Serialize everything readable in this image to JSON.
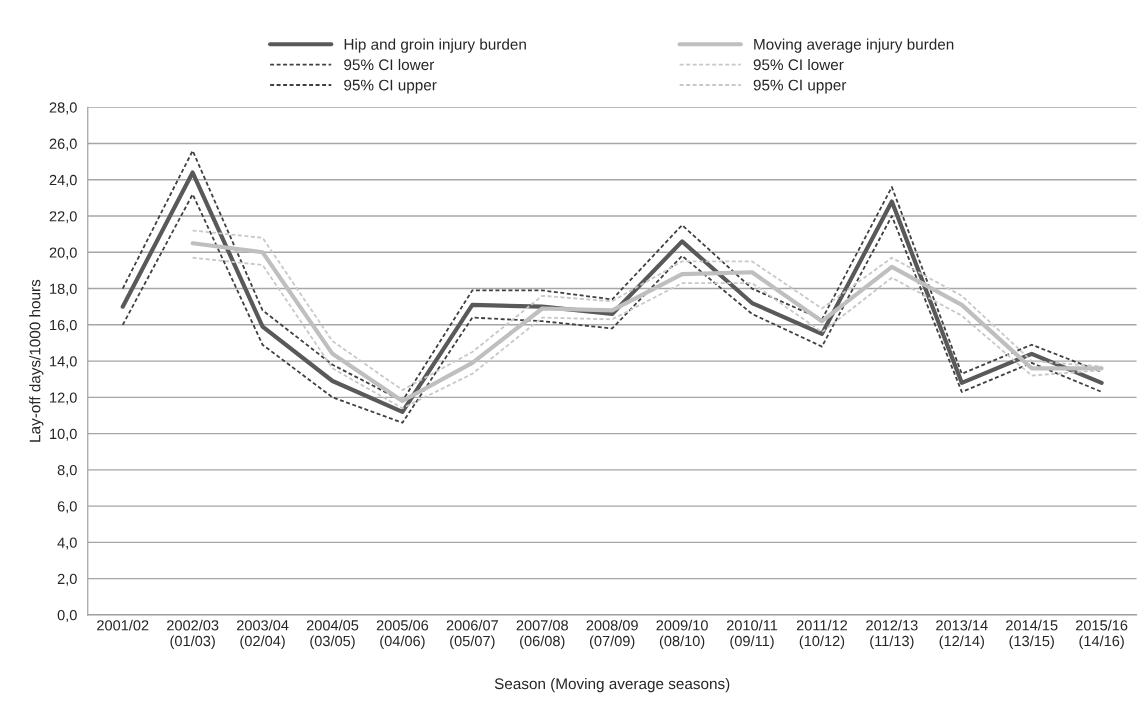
{
  "chart_data": {
    "type": "line",
    "ylabel": "Lay-off days/1000 hours",
    "xlabel": "Season (Moving average seasons)",
    "categories": [
      "2001/02",
      "2002/03\n(01/03)",
      "2003/04\n(02/04)",
      "2004/05\n(03/05)",
      "2005/06\n(04/06)",
      "2006/07\n(05/07)",
      "2007/08\n(06/08)",
      "2008/09\n(07/09)",
      "2009/10\n(08/10)",
      "2010/11\n(09/11)",
      "2011/12\n(10/12)",
      "2012/13\n(11/13)",
      "2013/14\n(12/14)",
      "2014/15\n(13/15)",
      "2015/16\n(14/16)"
    ],
    "series": [
      {
        "name": "Hip and groin injury burden",
        "color": "#595959",
        "line_style": "solid",
        "values": [
          17.0,
          24.4,
          15.9,
          12.9,
          11.2,
          17.1,
          17.0,
          16.6,
          20.6,
          17.2,
          15.5,
          22.8,
          12.8,
          14.4,
          12.8
        ]
      },
      {
        "name": "95% CI lower",
        "color": "#404040",
        "line_style": "dashed",
        "values": [
          16.0,
          23.2,
          14.9,
          12.0,
          10.6,
          16.4,
          16.2,
          15.8,
          19.8,
          16.6,
          14.8,
          22.0,
          12.3,
          13.9,
          12.3
        ]
      },
      {
        "name": "95% CI upper",
        "color": "#404040",
        "line_style": "dashed",
        "values": [
          18.0,
          25.6,
          16.8,
          13.8,
          11.8,
          17.9,
          17.9,
          17.4,
          21.5,
          18.0,
          16.3,
          23.6,
          13.3,
          14.9,
          13.4
        ]
      },
      {
        "name": "Moving average injury burden",
        "color": "#bfbfbf",
        "line_style": "solid",
        "values": [
          null,
          20.5,
          20.0,
          14.4,
          11.8,
          13.9,
          16.9,
          16.8,
          18.8,
          18.9,
          16.2,
          19.2,
          17.1,
          13.6,
          13.6
        ]
      },
      {
        "name": "95% CI lower",
        "color": "#c8c8c8",
        "line_style": "dashed",
        "values": [
          null,
          19.7,
          19.3,
          13.6,
          11.4,
          13.3,
          16.4,
          16.3,
          18.3,
          18.3,
          15.6,
          18.6,
          16.5,
          13.2,
          13.5
        ]
      },
      {
        "name": "95% CI upper",
        "color": "#c8c8c8",
        "line_style": "dashed",
        "values": [
          null,
          21.2,
          20.8,
          15.1,
          12.4,
          14.5,
          17.6,
          17.3,
          19.5,
          19.5,
          16.9,
          19.7,
          17.6,
          14.0,
          13.7
        ]
      }
    ],
    "ylim": [
      0,
      28
    ],
    "yticks": [
      {
        "value": 0,
        "label": "0,0"
      },
      {
        "value": 2,
        "label": "2,0"
      },
      {
        "value": 4,
        "label": "4,0"
      },
      {
        "value": 6,
        "label": "6,0"
      },
      {
        "value": 8,
        "label": "8,0"
      },
      {
        "value": 10,
        "label": "10,0"
      },
      {
        "value": 12,
        "label": "12,0"
      },
      {
        "value": 14,
        "label": "14,0"
      },
      {
        "value": 16,
        "label": "16,0"
      },
      {
        "value": 18,
        "label": "18,0"
      },
      {
        "value": 20,
        "label": "20,0"
      },
      {
        "value": 22,
        "label": "22,0"
      },
      {
        "value": 24,
        "label": "24,0"
      },
      {
        "value": 26,
        "label": "26,0"
      },
      {
        "value": 28,
        "label": "28,0"
      }
    ],
    "grid": "y",
    "legend": "top",
    "marker": "none"
  }
}
